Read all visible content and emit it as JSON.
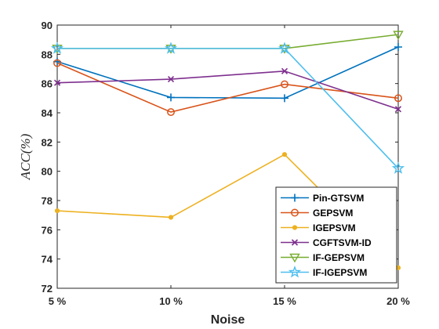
{
  "chart_data": {
    "type": "line",
    "title": "",
    "xlabel": "Noise",
    "ylabel": "ACC(%)",
    "categories": [
      "5 %",
      "10 %",
      "15 %",
      "20 %"
    ],
    "ylim": [
      72,
      90
    ],
    "yticks": [
      72,
      74,
      76,
      78,
      80,
      82,
      84,
      86,
      88,
      90
    ],
    "grid": false,
    "legend_position": "bottom-right",
    "series": [
      {
        "name": "Pin-GTSVM",
        "values": [
          87.5,
          85.05,
          85.0,
          88.5
        ],
        "color": "#0072BD",
        "marker": "plus"
      },
      {
        "name": "GEPSVM",
        "values": [
          87.4,
          84.05,
          85.95,
          85.0
        ],
        "color": "#D95319",
        "marker": "circle"
      },
      {
        "name": "IGEPSVM",
        "values": [
          77.3,
          76.85,
          81.15,
          73.4
        ],
        "color": "#EDB120",
        "marker": "dot"
      },
      {
        "name": "CGFTSVM-ID",
        "values": [
          86.05,
          86.3,
          86.85,
          84.25
        ],
        "color": "#7E2F8E",
        "marker": "x"
      },
      {
        "name": "IF-GEPSVM",
        "values": [
          88.4,
          88.4,
          88.4,
          89.35
        ],
        "color": "#77AC30",
        "marker": "triangle-down"
      },
      {
        "name": "IF-IGEPSVM",
        "values": [
          88.4,
          88.4,
          88.4,
          80.2
        ],
        "color": "#4DBEEE",
        "marker": "star"
      }
    ]
  }
}
